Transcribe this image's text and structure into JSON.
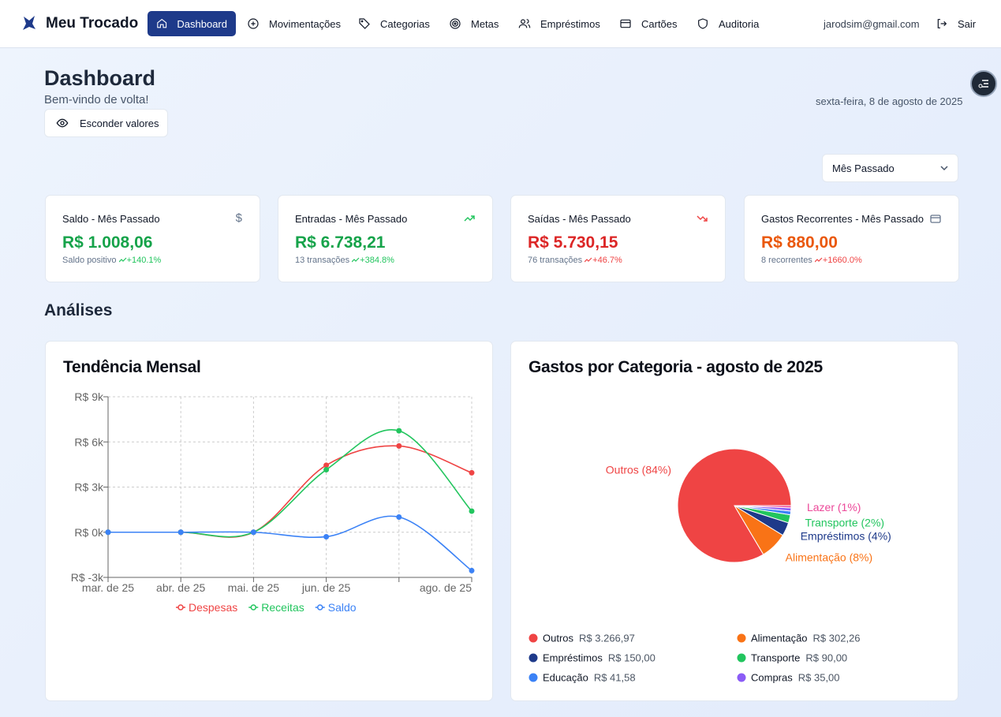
{
  "nav": {
    "brand": "Meu Trocado",
    "items": [
      "Dashboard",
      "Movimentações",
      "Categorias",
      "Metas",
      "Empréstimos",
      "Cartões",
      "Auditoria"
    ],
    "user": "jarodsim@gmail.com",
    "logout": "Sair"
  },
  "header": {
    "title": "Dashboard",
    "subtitle": "Bem-vindo de volta!",
    "date": "sexta-feira, 8 de agosto de 2025",
    "toggle": "Esconder valores",
    "period": "Mês Passado"
  },
  "cards": [
    {
      "title": "Saldo - Mês Passado",
      "value": "R$ 1.008,06",
      "note": "Saldo positivo",
      "change": "+140.1%",
      "color": "#16a34a",
      "change_color": "#22c55e"
    },
    {
      "title": "Entradas - Mês Passado",
      "value": "R$ 6.738,21",
      "note": "13 transações",
      "change": "+384.8%",
      "color": "#16a34a",
      "change_color": "#22c55e"
    },
    {
      "title": "Saídas - Mês Passado",
      "value": "R$ 5.730,15",
      "note": "76 transações",
      "change": "+46.7%",
      "color": "#dc2626",
      "change_color": "#ef4444"
    },
    {
      "title": "Gastos Recorrentes - Mês Passado",
      "value": "R$ 880,00",
      "note": "8 recorrentes",
      "change": "+1660.0%",
      "color": "#ea580c",
      "change_color": "#ef4444"
    }
  ],
  "section": "Análises",
  "chart_data": [
    {
      "type": "line",
      "title": "Tendência Mensal",
      "categories": [
        "mar. de 25",
        "abr. de 25",
        "mai. de 25",
        "jun. de 25",
        null,
        "ago. de 25"
      ],
      "series": [
        {
          "name": "Despesas",
          "color": "#ef4444",
          "values": [
            0,
            0,
            0,
            4450,
            5730,
            3950
          ]
        },
        {
          "name": "Receitas",
          "color": "#22c55e",
          "values": [
            0,
            0,
            0,
            4150,
            6740,
            1400
          ]
        },
        {
          "name": "Saldo",
          "color": "#3b82f6",
          "values": [
            0,
            0,
            0,
            -300,
            1010,
            -2550
          ]
        }
      ],
      "ylim": [
        -3000,
        9000
      ],
      "yticks": [
        {
          "value": -3000,
          "label": "R$ -3k"
        },
        {
          "value": 0,
          "label": "R$ 0k"
        },
        {
          "value": 3000,
          "label": "R$ 3k"
        },
        {
          "value": 6000,
          "label": "R$ 6k"
        },
        {
          "value": 9000,
          "label": "R$ 9k"
        }
      ],
      "grid": true
    },
    {
      "type": "pie",
      "title": "Gastos por Categoria - agosto de 2025",
      "categories": [
        "Outros",
        "Alimentação",
        "Empréstimos",
        "Transporte",
        "Educação",
        "Compras",
        "Lazer"
      ],
      "values": [
        3266.97,
        302.26,
        150,
        90,
        41.58,
        35,
        25
      ],
      "value_labels": [
        "R$ 3.266,97",
        "R$ 302,26",
        "R$ 150,00",
        "R$ 90,00",
        "R$ 41,58",
        "R$ 35,00",
        null
      ],
      "slice_labels": [
        "Outros (84%)",
        "Alimentação (8%)",
        "Empréstimos (4%)",
        "Transporte (2%)",
        null,
        null,
        "Lazer (1%)"
      ],
      "colors": [
        "#ef4444",
        "#f97316",
        "#1e3a8a",
        "#22c55e",
        "#3b82f6",
        "#8b5cf6",
        "#ec4899"
      ]
    }
  ]
}
